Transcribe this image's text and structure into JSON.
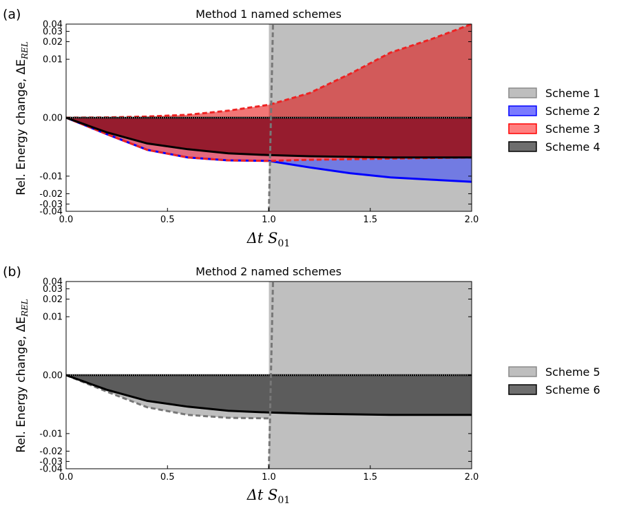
{
  "chart_data": [
    {
      "type": "area",
      "panel_label": "(a)",
      "title": "Method 1 named schemes",
      "xlabel": "Δt S01",
      "ylabel": "Rel. Energy change, ΔE_REL",
      "xlim": [
        0.0,
        2.0
      ],
      "ylim": [
        -0.04,
        0.04
      ],
      "y_scale": "symlog",
      "x_ticks": [
        "0.0",
        "0.5",
        "1.0",
        "1.5",
        "2.0"
      ],
      "y_ticks": [
        "0.04",
        "0.03",
        "0.02",
        "0.01",
        "0.00",
        "-0.01",
        "-0.02",
        "-0.03",
        "-0.04"
      ],
      "unstable_dt": 1.0,
      "legend_position": "right",
      "series": [
        {
          "name": "Scheme 1",
          "color": "#bebebe",
          "x": [
            0.0,
            0.2,
            0.4,
            0.6,
            0.8,
            1.0
          ],
          "upper": [
            0,
            5e-05,
            0.0002,
            0.0005,
            0.0012,
            0.0022
          ],
          "lower": [
            0,
            -0.0028,
            -0.0055,
            -0.0068,
            -0.0073,
            -0.0074
          ]
        },
        {
          "name": "Scheme 2",
          "color": "#0000ff",
          "x": [
            0.0,
            0.2,
            0.4,
            0.6,
            0.8,
            1.0,
            1.2,
            1.4,
            1.6,
            1.8,
            2.0
          ],
          "upper": [
            0,
            0,
            0,
            0,
            0,
            0,
            0,
            0,
            0,
            0,
            0
          ],
          "lower": [
            0,
            -0.0028,
            -0.0055,
            -0.0068,
            -0.0073,
            -0.0074,
            -0.0085,
            -0.0095,
            -0.0105,
            -0.0115,
            -0.0125
          ]
        },
        {
          "name": "Scheme 3",
          "color": "#ff5555",
          "x": [
            0.0,
            0.2,
            0.4,
            0.6,
            0.8,
            1.0,
            1.2,
            1.4,
            1.6,
            1.8,
            2.0
          ],
          "upper": [
            0,
            5e-05,
            0.0002,
            0.0005,
            0.0012,
            0.0022,
            0.0042,
            0.0075,
            0.013,
            0.022,
            0.04
          ],
          "lower": [
            0,
            -0.0028,
            -0.0055,
            -0.0068,
            -0.0073,
            -0.0074,
            -0.0072,
            -0.0071,
            -0.007,
            -0.0069,
            -0.0068
          ]
        },
        {
          "name": "Scheme 4",
          "color": "#404040",
          "x": [
            0.0,
            0.2,
            0.4,
            0.6,
            0.8,
            1.0,
            1.2,
            1.4,
            1.6,
            1.8,
            2.0
          ],
          "upper": [
            0,
            0,
            0,
            0,
            0,
            0,
            0,
            0,
            0,
            0,
            0
          ],
          "lower": [
            0,
            -0.0025,
            -0.0044,
            -0.0054,
            -0.0061,
            -0.0064,
            -0.0066,
            -0.0067,
            -0.0068,
            -0.0068,
            -0.0068
          ]
        }
      ]
    },
    {
      "type": "area",
      "panel_label": "(b)",
      "title": "Method 2 named schemes",
      "xlabel": "Δt S01",
      "ylabel": "Rel. Energy change, ΔE_REL",
      "xlim": [
        0.0,
        2.0
      ],
      "ylim": [
        -0.04,
        0.04
      ],
      "y_scale": "symlog",
      "x_ticks": [
        "0.0",
        "0.5",
        "1.0",
        "1.5",
        "2.0"
      ],
      "y_ticks": [
        "0.04",
        "0.03",
        "0.02",
        "0.01",
        "0.00",
        "-0.01",
        "-0.02",
        "-0.03",
        "-0.04"
      ],
      "unstable_dt": 1.0,
      "legend_position": "right",
      "series": [
        {
          "name": "Scheme 5",
          "color": "#bebebe",
          "x": [
            0.0,
            0.2,
            0.4,
            0.6,
            0.8,
            1.0
          ],
          "upper": [
            0,
            0,
            0,
            0,
            0,
            0
          ],
          "lower": [
            0,
            -0.0028,
            -0.0055,
            -0.0068,
            -0.0073,
            -0.0074
          ]
        },
        {
          "name": "Scheme 6",
          "color": "#404040",
          "x": [
            0.0,
            0.2,
            0.4,
            0.6,
            0.8,
            1.0,
            1.2,
            1.4,
            1.6,
            1.8,
            2.0
          ],
          "upper": [
            0,
            0,
            0,
            0,
            0,
            0,
            0,
            0,
            0,
            0,
            0
          ],
          "lower": [
            0,
            -0.0025,
            -0.0044,
            -0.0054,
            -0.0061,
            -0.0064,
            -0.0066,
            -0.0067,
            -0.0068,
            -0.0068,
            -0.0068
          ]
        }
      ]
    }
  ]
}
